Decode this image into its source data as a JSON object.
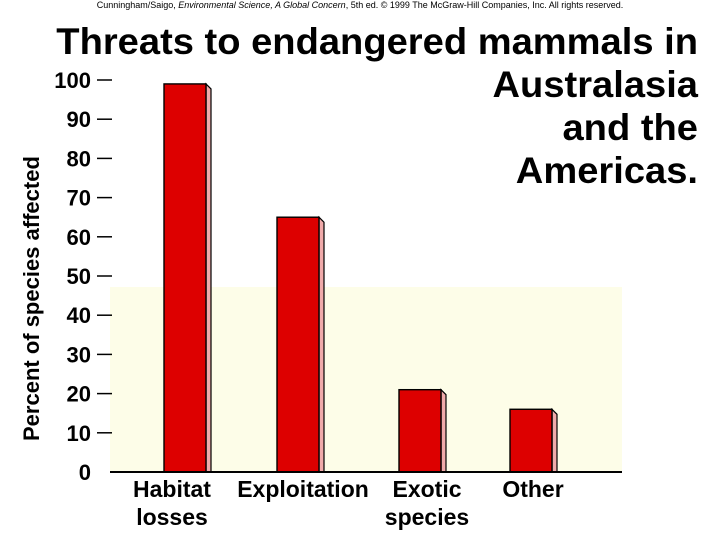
{
  "credit": {
    "authors": "Cunningham/Saigo, ",
    "book": "Environmental Science, A Global Concern",
    "rest": ", 5th ed. © 1999 The McGraw-Hill Companies, Inc. All rights reserved."
  },
  "title_lines": [
    "Threats to endangered mammals in",
    "Australasia",
    "and the",
    "Americas."
  ],
  "colors": {
    "bar": "#dd0000",
    "bar_side": "#f0aaaa",
    "band": "#fdfde8"
  },
  "chart_data": {
    "type": "bar",
    "title": "Threats to endangered mammals in Australasia and the Americas.",
    "ylabel": "Percent of species affected",
    "xlabel": "",
    "ylim": [
      0,
      100
    ],
    "yticks": [
      0,
      10,
      20,
      30,
      40,
      50,
      60,
      70,
      80,
      90,
      100
    ],
    "categories": [
      "Habitat losses",
      "Exploitation",
      "Exotic species",
      "Other"
    ],
    "category_label_lines": [
      [
        "Habitat",
        "losses"
      ],
      [
        "Exploitation"
      ],
      [
        "Exotic",
        "species"
      ],
      [
        "Other"
      ]
    ],
    "values": [
      99,
      65,
      21,
      16
    ],
    "grid": false,
    "legend": "none"
  }
}
